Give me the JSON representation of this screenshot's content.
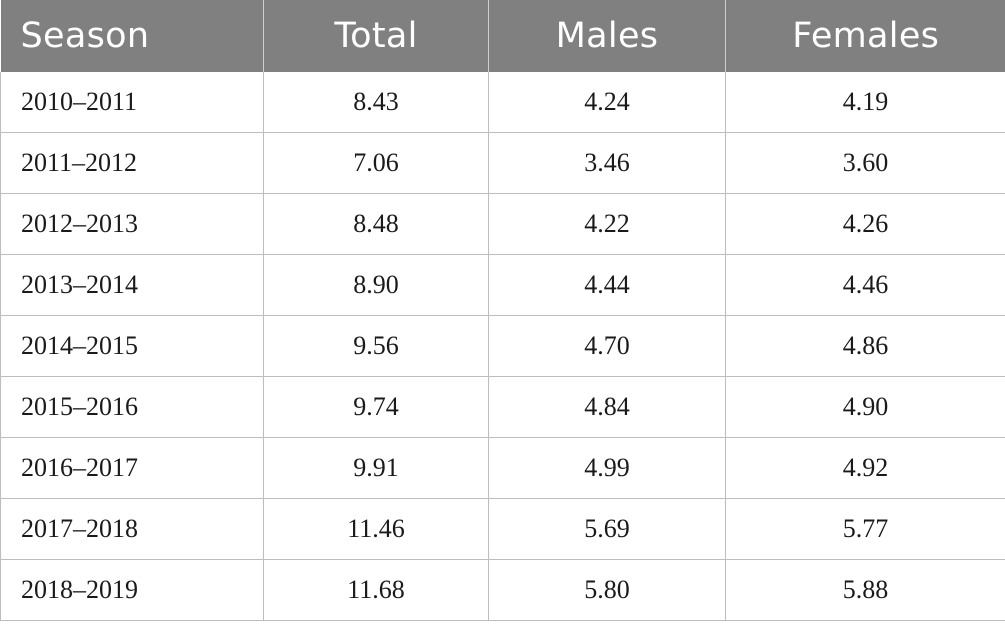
{
  "table": {
    "headers": [
      "Season",
      "Total",
      "Males",
      "Females"
    ],
    "rows": [
      [
        "2010–2011",
        "8.43",
        "4.24",
        "4.19"
      ],
      [
        "2011–2012",
        "7.06",
        "3.46",
        "3.60"
      ],
      [
        "2012–2013",
        "8.48",
        "4.22",
        "4.26"
      ],
      [
        "2013–2014",
        "8.90",
        "4.44",
        "4.46"
      ],
      [
        "2014–2015",
        "9.56",
        "4.70",
        "4.86"
      ],
      [
        "2015–2016",
        "9.74",
        "4.84",
        "4.90"
      ],
      [
        "2016–2017",
        "9.91",
        "4.99",
        "4.92"
      ],
      [
        "2017–2018",
        "11.46",
        "5.69",
        "5.77"
      ],
      [
        "2018–2019",
        "11.68",
        "5.80",
        "5.88"
      ]
    ]
  },
  "colors": {
    "header_bg": "#808080",
    "header_text": "#ffffff",
    "grid": "#bdbdbd"
  }
}
